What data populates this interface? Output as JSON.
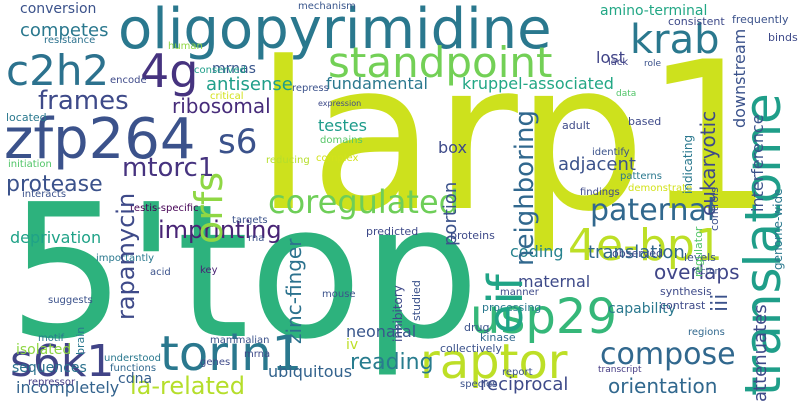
{
  "words": {
    "larp1": "larp1",
    "five_top": "5'top",
    "oligopyrimidine": "oligopyrimidine",
    "translatome": "translatome",
    "standpoint": "standpoint",
    "krab": "krab",
    "c2h2": "c2h2",
    "four_g": "4g",
    "zfp264": "zfp264",
    "s6": "s6",
    "torin1": "torin1",
    "raptor": "raptor",
    "usp29": "usp29",
    "s6k1": "s6k1",
    "four_e_bp1": "4e-bp1",
    "eif": "eif",
    "orfs": "orfs",
    "coregulated": "coregulated",
    "paternal": "paternal",
    "compose": "compose",
    "la_related": "la-related",
    "mtorc1": "mtorc1",
    "frames": "frames",
    "protease": "protease",
    "rapamycin": "rapamycin",
    "imprinting": "imprinting",
    "reading": "reading",
    "ribosomal": "ribosomal",
    "kruppel_associated": "kruppel-associated",
    "fundamental": "fundamental",
    "antisense": "antisense",
    "testes": "testes",
    "domains": "domains",
    "box": "box",
    "portion": "portion",
    "adjacent": "adjacent",
    "neighboring": "neighboring",
    "translation": "translation",
    "coding": "coding",
    "maternal": "maternal",
    "capability": "capability",
    "overlaps": "overlaps",
    "orientation": "orientation",
    "reciprocal": "reciprocal",
    "ubiquitous": "ubiquitous",
    "incompletely": "incompletely",
    "neonatal": "neonatal",
    "iv": "iv",
    "zinc_finger": "zinc-finger",
    "lost": "lost",
    "amino_terminal": "amino-terminal",
    "competes": "competes",
    "conversion": "conversion",
    "mrnas": "mrnas",
    "cdna": "cdna",
    "deprivation": "deprivation",
    "sequences": "sequences",
    "isolated": "isolated",
    "repressor": "repressor",
    "motif": "motif",
    "suggests": "suggests",
    "interacts": "interacts",
    "initiation": "initiation",
    "located": "located",
    "encode": "encode",
    "resistance": "resistance",
    "conserved": "conserved",
    "human": "human",
    "critical": "critical",
    "repress": "repress",
    "expression": "expression",
    "reducing": "reducing",
    "complex": "complex",
    "testis_specific": "testis-specific",
    "targets": "targets",
    "rna": "rna",
    "importantly": "importantly",
    "acid": "acid",
    "genes": "genes",
    "mammalian": "mammalian",
    "mrna": "mrna",
    "understood": "understood",
    "functions": "functions",
    "key": "key",
    "brain": "brain",
    "mouse": "mouse",
    "inhibitory": "inhibitory",
    "studied": "studied",
    "predicted": "predicted",
    "proteins": "proteins",
    "processing": "processing",
    "drug": "drug",
    "kinase": "kinase",
    "manner": "manner",
    "collectively": "collectively",
    "report": "report",
    "species": "species",
    "transcript": "transcript",
    "observed": "observed",
    "contrast": "contrast",
    "synthesis": "synthesis",
    "regions": "regions",
    "levels": "levels",
    "demonstrate": "demonstrate",
    "findings": "findings",
    "patterns": "patterns",
    "identify": "identify",
    "based": "based",
    "adult": "adult",
    "data": "data",
    "role": "role",
    "lack": "lack",
    "consistent": "consistent",
    "mechanism": "mechanism",
    "frequently": "frequently",
    "binds": "binds",
    "downstream": "downstream",
    "eukaryotic": "eukaryotic",
    "interference": "interference",
    "attenuates": "attenuates",
    "genome_wide": "genome-wide",
    "iii": "iii",
    "indicating": "indicating",
    "controls": "controls",
    "regulator": "regulator",
    "factor": "factor"
  },
  "colors": {
    "background": "#ffffff",
    "palette": "viridis"
  }
}
